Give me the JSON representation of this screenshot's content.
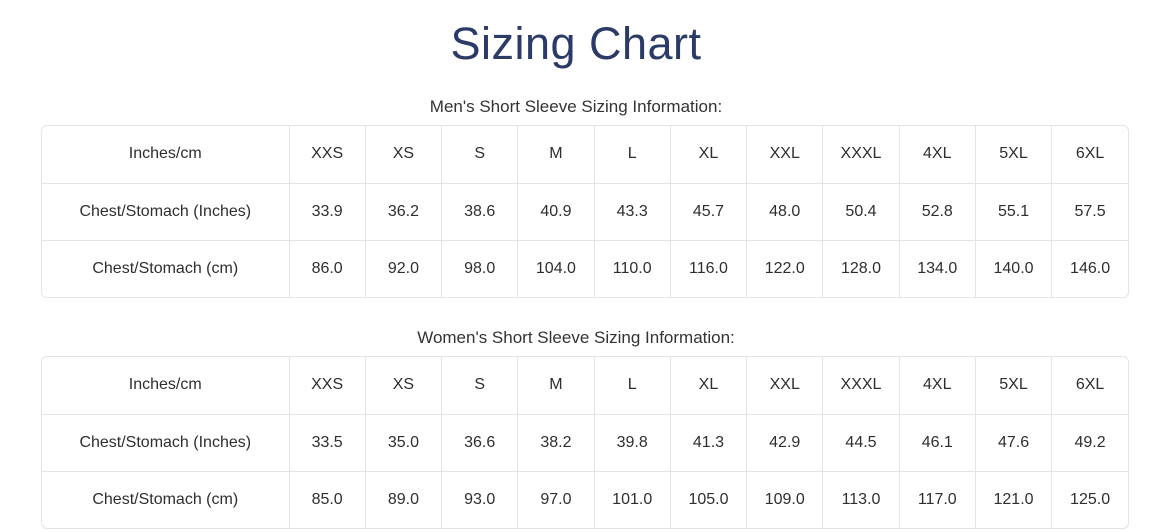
{
  "page": {
    "title": "Sizing Chart"
  },
  "sections": [
    {
      "heading": "Men's Short Sleeve Sizing Information:",
      "rows": [
        [
          "Inches/cm",
          "XXS",
          "XS",
          "S",
          "M",
          "L",
          "XL",
          "XXL",
          "XXXL",
          "4XL",
          "5XL",
          "6XL"
        ],
        [
          "Chest/Stomach (Inches)",
          "33.9",
          "36.2",
          "38.6",
          "40.9",
          "43.3",
          "45.7",
          "48.0",
          "50.4",
          "52.8",
          "55.1",
          "57.5"
        ],
        [
          "Chest/Stomach (cm)",
          "86.0",
          "92.0",
          "98.0",
          "104.0",
          "110.0",
          "116.0",
          "122.0",
          "128.0",
          "134.0",
          "140.0",
          "146.0"
        ]
      ]
    },
    {
      "heading": "Women's Short Sleeve Sizing Information:",
      "rows": [
        [
          "Inches/cm",
          "XXS",
          "XS",
          "S",
          "M",
          "L",
          "XL",
          "XXL",
          "XXXL",
          "4XL",
          "5XL",
          "6XL"
        ],
        [
          "Chest/Stomach (Inches)",
          "33.5",
          "35.0",
          "36.6",
          "38.2",
          "39.8",
          "41.3",
          "42.9",
          "44.5",
          "46.1",
          "47.6",
          "49.2"
        ],
        [
          "Chest/Stomach (cm)",
          "85.0",
          "89.0",
          "93.0",
          "97.0",
          "101.0",
          "105.0",
          "109.0",
          "113.0",
          "117.0",
          "121.0",
          "125.0"
        ]
      ]
    }
  ],
  "colors": {
    "title": "#2b3a67",
    "body_text": "#2e2e2e",
    "table_border": "#e4e4e4",
    "background": "#ffffff"
  }
}
